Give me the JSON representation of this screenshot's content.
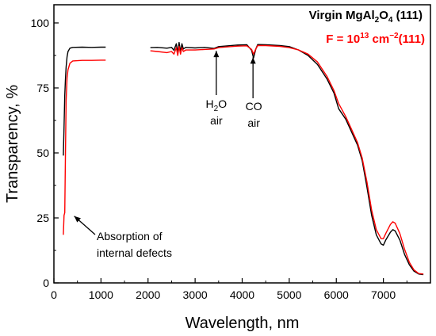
{
  "chart_data": {
    "type": "line",
    "title": "",
    "xlabel": "Wavelength, nm",
    "ylabel": "Transparency, %",
    "xlim": [
      0,
      8000
    ],
    "ylim": [
      0,
      107
    ],
    "x_ticks": [
      0,
      1000,
      2000,
      3000,
      4000,
      5000,
      6000,
      7000
    ],
    "x_tick_labels": [
      "0",
      "1000",
      "2000",
      "3000",
      "4000",
      "5000",
      "6000",
      "7000"
    ],
    "y_ticks": [
      0,
      25,
      50,
      75,
      100
    ],
    "y_tick_labels": [
      "0",
      "25",
      "50",
      "75",
      "100"
    ],
    "grid": false,
    "legend_position": "top-right",
    "legend": [
      {
        "base": "Virgin MgAl",
        "sub1": "2",
        "mid": "O",
        "sub2": "4",
        "tail": " (111)",
        "color": "#000000"
      },
      {
        "base": "F = 10",
        "sup1": "13",
        "mid": " cm",
        "sup2": "−2",
        "tail": "(111)",
        "color": "#ff0000"
      }
    ],
    "series": [
      {
        "color": "#000000",
        "segments": [
          [
            [
              200,
              49
            ],
            [
              215,
              60
            ],
            [
              230,
              72
            ],
            [
              245,
              78
            ],
            [
              260,
              83
            ],
            [
              280,
              87
            ],
            [
              300,
              89
            ],
            [
              340,
              90.3
            ],
            [
              400,
              90.6
            ],
            [
              600,
              90.7
            ],
            [
              800,
              90.6
            ],
            [
              1000,
              90.7
            ],
            [
              1100,
              90.7
            ]
          ],
          [
            [
              2050,
              90.5
            ],
            [
              2200,
              90.6
            ],
            [
              2400,
              90.3
            ],
            [
              2500,
              90.6
            ],
            [
              2550,
              89.5
            ],
            [
              2600,
              92
            ],
            [
              2630,
              88.5
            ],
            [
              2660,
              92.5
            ],
            [
              2690,
              89
            ],
            [
              2720,
              92
            ],
            [
              2750,
              90
            ],
            [
              2800,
              90.6
            ],
            [
              3000,
              90.4
            ],
            [
              3200,
              90.6
            ],
            [
              3400,
              90.2
            ],
            [
              3500,
              90.9
            ],
            [
              3700,
              91.2
            ],
            [
              3900,
              91.5
            ],
            [
              4100,
              91.6
            ],
            [
              4200,
              89.5
            ],
            [
              4240,
              86.5
            ],
            [
              4290,
              90
            ],
            [
              4330,
              91.7
            ],
            [
              4500,
              91.6
            ],
            [
              4800,
              91.3
            ],
            [
              5000,
              90.9
            ],
            [
              5200,
              89.6
            ],
            [
              5400,
              87.5
            ],
            [
              5600,
              84
            ],
            [
              5800,
              78.5
            ],
            [
              5950,
              73
            ],
            [
              6050,
              67
            ],
            [
              6200,
              63
            ],
            [
              6300,
              59
            ],
            [
              6450,
              53
            ],
            [
              6550,
              47
            ],
            [
              6650,
              37
            ],
            [
              6750,
              26
            ],
            [
              6850,
              18.5
            ],
            [
              6950,
              15
            ],
            [
              7000,
              14.5
            ],
            [
              7050,
              16.5
            ],
            [
              7150,
              19.5
            ],
            [
              7200,
              20.5
            ],
            [
              7250,
              20
            ],
            [
              7350,
              16.5
            ],
            [
              7450,
              11
            ],
            [
              7550,
              7
            ],
            [
              7650,
              4.5
            ],
            [
              7750,
              3.4
            ],
            [
              7850,
              3.2
            ]
          ]
        ]
      },
      {
        "color": "#ff0000",
        "segments": [
          [
            [
              200,
              18.5
            ],
            [
              215,
              26
            ],
            [
              230,
              27
            ],
            [
              245,
              48
            ],
            [
              260,
              70
            ],
            [
              280,
              79
            ],
            [
              300,
              82
            ],
            [
              340,
              84.5
            ],
            [
              400,
              85.4
            ],
            [
              600,
              85.6
            ],
            [
              800,
              85.6
            ],
            [
              1000,
              85.7
            ],
            [
              1100,
              85.7
            ]
          ],
          [
            [
              2050,
              89.3
            ],
            [
              2200,
              89
            ],
            [
              2400,
              88.6
            ],
            [
              2500,
              89
            ],
            [
              2550,
              88
            ],
            [
              2600,
              90.5
            ],
            [
              2630,
              87.5
            ],
            [
              2660,
              91
            ],
            [
              2690,
              88
            ],
            [
              2720,
              90.5
            ],
            [
              2750,
              89
            ],
            [
              2800,
              89.6
            ],
            [
              3000,
              89.6
            ],
            [
              3200,
              89.8
            ],
            [
              3400,
              90
            ],
            [
              3500,
              90.5
            ],
            [
              3700,
              90.8
            ],
            [
              3900,
              91.1
            ],
            [
              4100,
              91.2
            ],
            [
              4200,
              89.8
            ],
            [
              4240,
              88
            ],
            [
              4290,
              90
            ],
            [
              4330,
              91.3
            ],
            [
              4500,
              91.3
            ],
            [
              4800,
              91
            ],
            [
              5000,
              90.5
            ],
            [
              5200,
              89.6
            ],
            [
              5400,
              88
            ],
            [
              5600,
              85
            ],
            [
              5800,
              79.5
            ],
            [
              5950,
              74
            ],
            [
              6050,
              69
            ],
            [
              6200,
              64
            ],
            [
              6300,
              60
            ],
            [
              6450,
              54
            ],
            [
              6550,
              48
            ],
            [
              6650,
              39
            ],
            [
              6750,
              28
            ],
            [
              6850,
              20.5
            ],
            [
              6950,
              17
            ],
            [
              7000,
              17
            ],
            [
              7050,
              19
            ],
            [
              7150,
              22.5
            ],
            [
              7200,
              23.5
            ],
            [
              7250,
              23
            ],
            [
              7350,
              19
            ],
            [
              7450,
              13
            ],
            [
              7550,
              8
            ],
            [
              7650,
              5
            ],
            [
              7750,
              3.6
            ],
            [
              7850,
              3.4
            ]
          ]
        ]
      }
    ],
    "annotations": [
      {
        "lines": [
          {
            "base": "H",
            "sub": "2",
            "tail": "O"
          },
          {
            "base": "air"
          }
        ],
        "x": 3450,
        "y": 90.5
      },
      {
        "lines": [
          {
            "base": "CO"
          },
          {
            "base": "air"
          }
        ],
        "x": 4230,
        "y": 88
      },
      {
        "lines": [
          {
            "base": "Absorption of"
          },
          {
            "base": "internal defects"
          }
        ],
        "x": 230,
        "y": 26
      }
    ]
  }
}
